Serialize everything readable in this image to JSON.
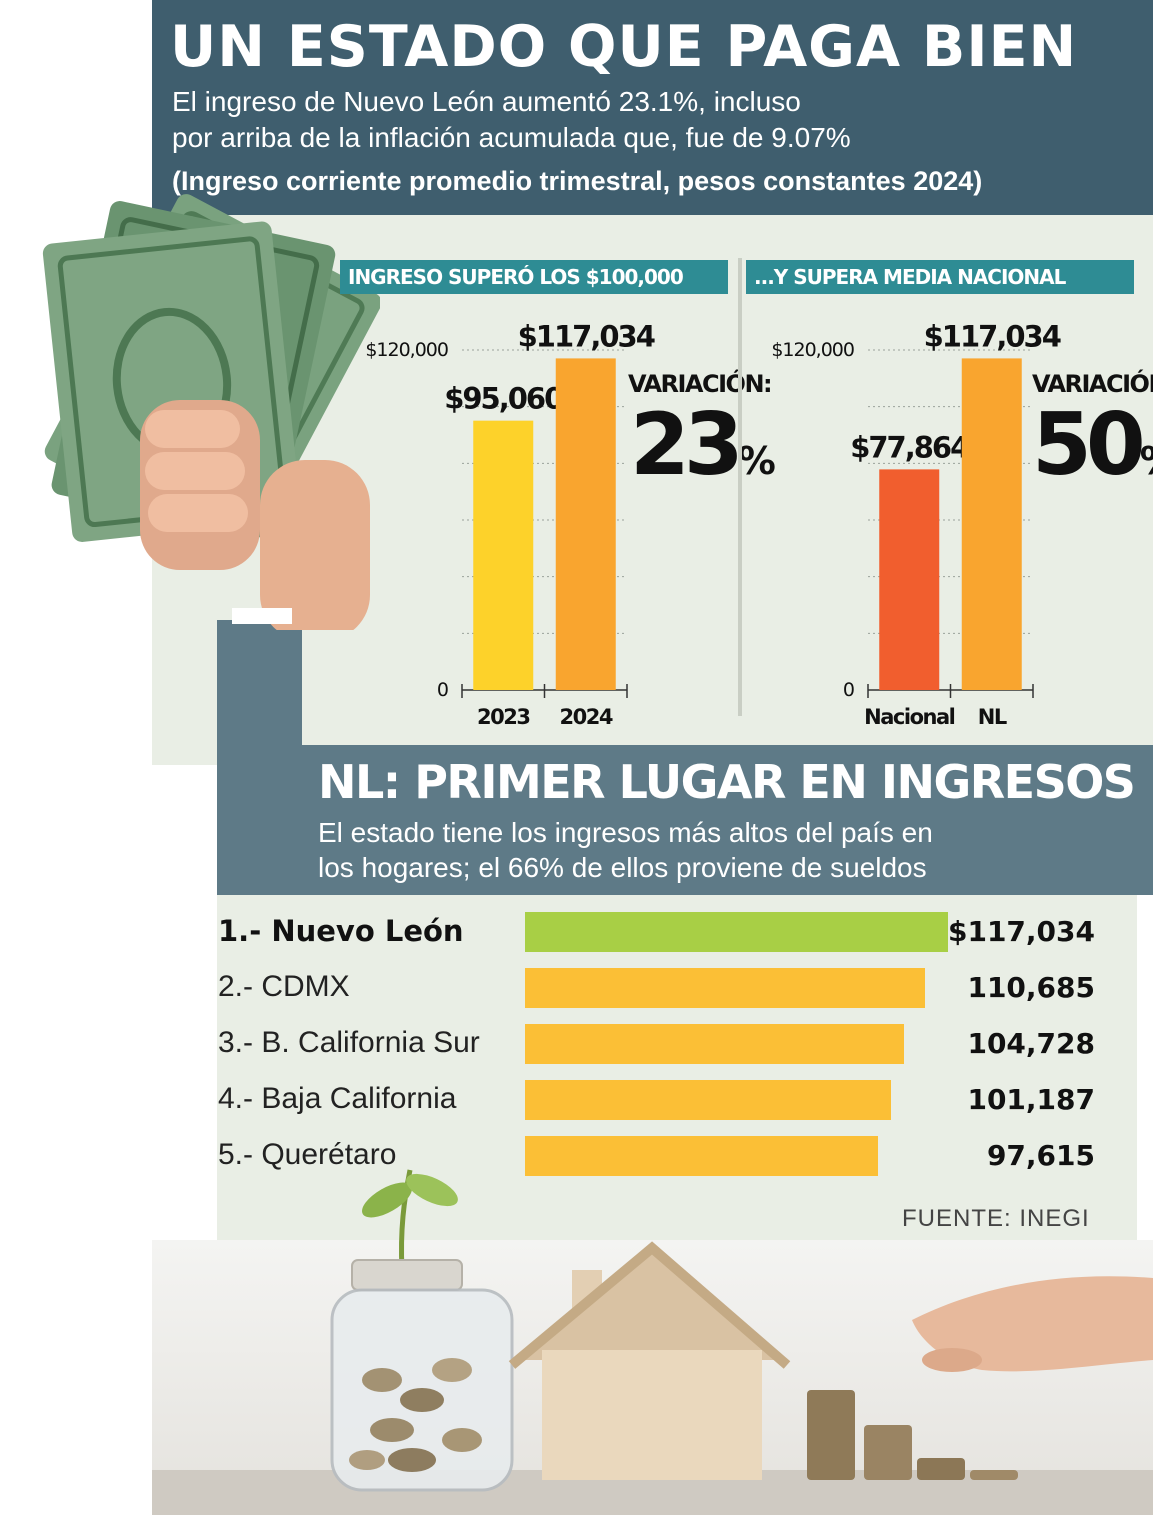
{
  "header": {
    "title": "UN ESTADO QUE PAGA BIEN",
    "subtitle_line1": "El ingreso de Nuevo León aumentó 23.1%, incluso",
    "subtitle_line2": "por arriba de la inflación acumulada que, fue de 9.07%",
    "subtitle_line3": "(Ingreso corriente promedio trimestral, pesos constantes 2024)"
  },
  "section2": {
    "title": "NL: PRIMER LUGAR EN INGRESOS",
    "subtitle_line1": "El estado tiene los ingresos más altos del país en",
    "subtitle_line2": "los hogares; el 66% de ellos proviene de sueldos"
  },
  "source": "FUENTE: INEGI",
  "colors": {
    "header": "#3f5e6e",
    "panel": "#e9eee5",
    "chart_title_bar": "#2e8c94",
    "bar_2023": "#fdd22a",
    "bar_2024": "#f9a52f",
    "bar_nacional": "#f15e2e",
    "bar_nl": "#f9a52f",
    "rank_first": "#a8cf45",
    "rank_other": "#fbbf36"
  },
  "icons": [
    "money-hand-illustration",
    "coin-jar-illustration",
    "house-illustration",
    "coin-stacks-illustration"
  ],
  "chart_data": [
    {
      "type": "bar",
      "title": "INGRESO SUPERÓ LOS $100,000",
      "categories": [
        "2023",
        "2024"
      ],
      "values": [
        95060,
        117034
      ],
      "value_labels": [
        "$95,060",
        "$117,034"
      ],
      "ylim": [
        0,
        120000
      ],
      "y_tick_labels": [
        "0",
        "$120,000"
      ],
      "grid": true,
      "variation_label": "VARIACIÓN:",
      "variation_value": "23",
      "variation_unit": "%"
    },
    {
      "type": "bar",
      "title": "...Y SUPERA MEDIA NACIONAL",
      "categories": [
        "Nacional",
        "NL"
      ],
      "values": [
        77864,
        117034
      ],
      "value_labels": [
        "$77,864",
        "$117,034"
      ],
      "ylim": [
        0,
        120000
      ],
      "y_tick_labels": [
        "0",
        "$120,000"
      ],
      "grid": true,
      "variation_label": "VARIACIÓN:",
      "variation_value": "50",
      "variation_unit": "%"
    },
    {
      "type": "bar",
      "orientation": "horizontal",
      "categories": [
        "1.- Nuevo León",
        "2.- CDMX",
        "3.- B. California Sur",
        "4.- Baja California",
        "5.- Querétaro"
      ],
      "values": [
        117034,
        110685,
        104728,
        101187,
        97615
      ],
      "value_labels": [
        "$117,034",
        "110,685",
        "104,728",
        "101,187",
        "97,615"
      ]
    }
  ]
}
